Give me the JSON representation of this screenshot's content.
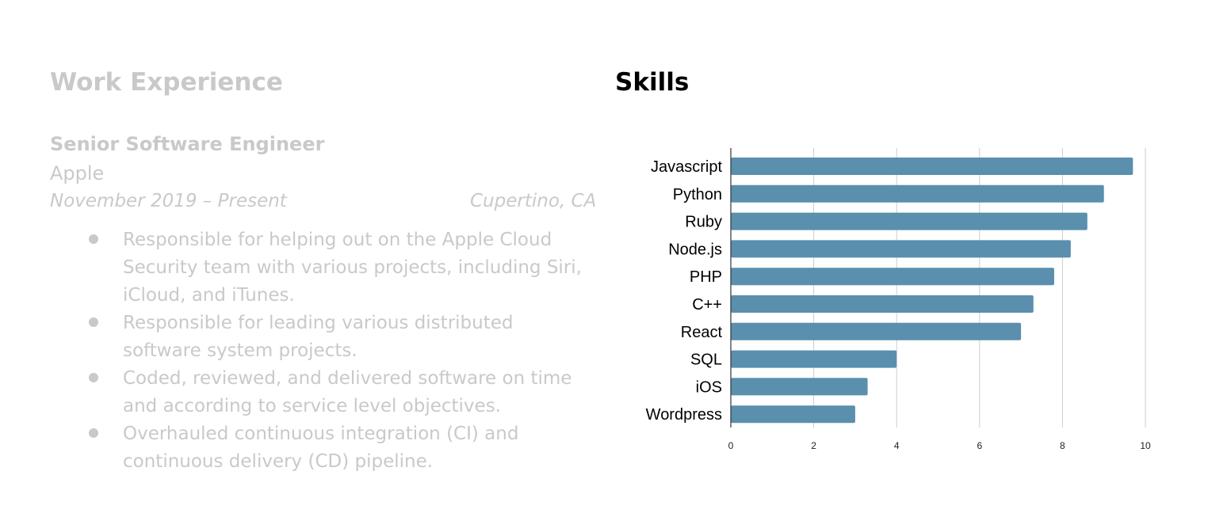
{
  "work": {
    "title": "Work Experience",
    "job_title": "Senior Software Engineer",
    "company": "Apple",
    "dates": "November 2019 – Present",
    "location": "Cupertino, CA",
    "bullets": [
      "Responsible for helping out on the Apple Cloud Security team with various projects, including Siri, iCloud, and iTunes.",
      "Responsible for leading various distributed software system projects.",
      "Coded, reviewed, and delivered software on time and according to service level objectives.",
      "Overhauled continuous integration (CI) and continuous delivery (CD) pipeline."
    ]
  },
  "skills": {
    "title": "Skills"
  },
  "colors": {
    "bar": "#5a8fae",
    "muted_text": "#c9c9c9",
    "grid": "#cccccc"
  },
  "chart_data": {
    "type": "bar",
    "orientation": "horizontal",
    "title": "Skills",
    "categories": [
      "Javascript",
      "Python",
      "Ruby",
      "Node.js",
      "PHP",
      "C++",
      "React",
      "SQL",
      "iOS",
      "Wordpress"
    ],
    "values": [
      9.7,
      9.0,
      8.6,
      8.2,
      7.8,
      7.3,
      7.0,
      4.0,
      3.3,
      3.0
    ],
    "xlabel": "",
    "ylabel": "",
    "xlim": [
      0,
      10
    ],
    "xticks": [
      0,
      2,
      4,
      6,
      8,
      10
    ],
    "grid": true
  }
}
